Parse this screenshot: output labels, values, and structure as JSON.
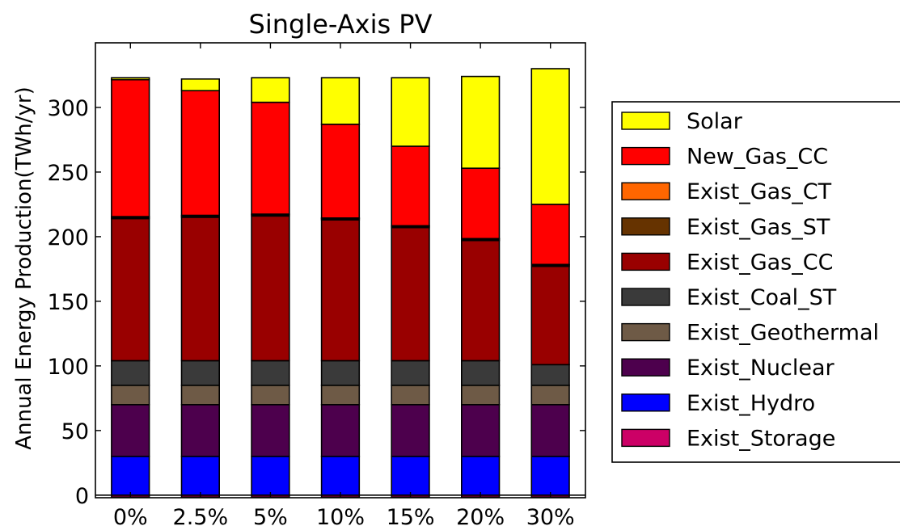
{
  "chart_data": {
    "type": "bar",
    "stacked": true,
    "title": "Single-Axis PV",
    "xlabel": "",
    "ylabel": "Annual Energy Production(TWh/yr)",
    "ylim": [
      -2,
      350
    ],
    "yticks": [
      0,
      50,
      100,
      150,
      200,
      250,
      300
    ],
    "grid": false,
    "legend_position": "right",
    "categories": [
      "0%",
      "2.5%",
      "5%",
      "10%",
      "15%",
      "20%",
      "30%"
    ],
    "series": [
      {
        "name": "Exist_Storage",
        "color": "#cc0066",
        "values": [
          -1.5,
          -1.5,
          -1.5,
          -1.5,
          -1.5,
          -1.5,
          -1.5
        ]
      },
      {
        "name": "Exist_Hydro",
        "color": "#0000ff",
        "values": [
          30,
          30,
          30,
          30,
          30,
          30,
          30
        ]
      },
      {
        "name": "Exist_Nuclear",
        "color": "#4d004d",
        "values": [
          40,
          40,
          40,
          40,
          40,
          40,
          40
        ]
      },
      {
        "name": "Exist_Geothermal",
        "color": "#6e5a46",
        "values": [
          15,
          15,
          15,
          15,
          15,
          15,
          15
        ]
      },
      {
        "name": "Exist_Coal_ST",
        "color": "#3a3a3a",
        "values": [
          19,
          19,
          19,
          19,
          19,
          19,
          16
        ]
      },
      {
        "name": "Exist_Gas_CC",
        "color": "#990000",
        "values": [
          110,
          111,
          112,
          109,
          103,
          93,
          76
        ]
      },
      {
        "name": "Exist_Gas_ST",
        "color": "#663300",
        "values": [
          1,
          1,
          1,
          1,
          1,
          1,
          1
        ]
      },
      {
        "name": "Exist_Gas_CT",
        "color": "#ff6600",
        "values": [
          0.5,
          0.5,
          0.5,
          0.5,
          0.5,
          0.5,
          0.5
        ]
      },
      {
        "name": "New_Gas_CC",
        "color": "#ff0000",
        "values": [
          106,
          96.5,
          86.5,
          72.5,
          61.5,
          54.5,
          46.5
        ]
      },
      {
        "name": "Solar",
        "color": "#ffff00",
        "values": [
          1.5,
          9,
          19,
          36,
          53,
          71,
          105
        ]
      }
    ],
    "legend_order": [
      "Solar",
      "New_Gas_CC",
      "Exist_Gas_CT",
      "Exist_Gas_ST",
      "Exist_Gas_CC",
      "Exist_Coal_ST",
      "Exist_Geothermal",
      "Exist_Nuclear",
      "Exist_Hydro",
      "Exist_Storage"
    ]
  }
}
